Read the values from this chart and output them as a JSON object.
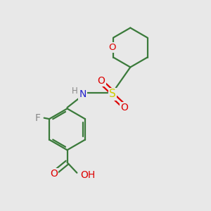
{
  "background_color": "#e8e8e8",
  "bond_color": "#3a7a3a",
  "atom_colors": {
    "O": "#dd0000",
    "N": "#2222cc",
    "F": "#888888",
    "S": "#cccc00",
    "H": "#888888"
  },
  "figsize": [
    3.0,
    3.0
  ],
  "dpi": 100,
  "xlim": [
    0,
    10
  ],
  "ylim": [
    0,
    10
  ]
}
